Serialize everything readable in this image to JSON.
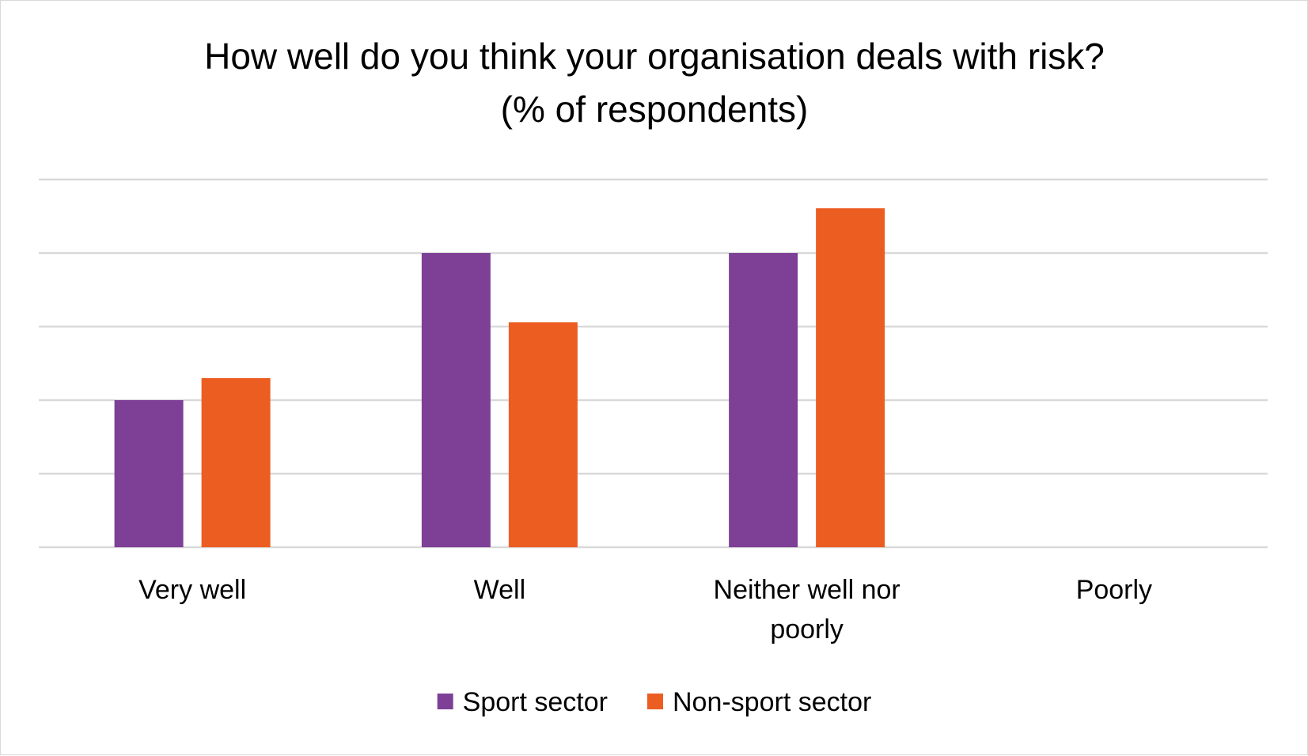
{
  "chart_data": {
    "type": "bar",
    "title": "How well do you think your organisation deals with risk?",
    "subtitle": "(% of respondents)",
    "xlabel": "",
    "ylabel": "",
    "categories": [
      "Very well",
      "Well",
      "Neither well nor poorly",
      "Poorly"
    ],
    "series": [
      {
        "name": "Sport sector",
        "color": "#7e3f96",
        "values": [
          20,
          40,
          40,
          0
        ]
      },
      {
        "name": "Non-sport sector",
        "color": "#ec5d22",
        "values": [
          23,
          30.6,
          46.1,
          0
        ]
      }
    ],
    "ylim": [
      0,
      50
    ],
    "yticks": [
      0,
      10,
      20,
      30,
      40,
      50
    ],
    "y_tick_labels_shown": false,
    "grid": true,
    "gridline_color": "#d9d9d9",
    "legend_position": "bottom"
  }
}
